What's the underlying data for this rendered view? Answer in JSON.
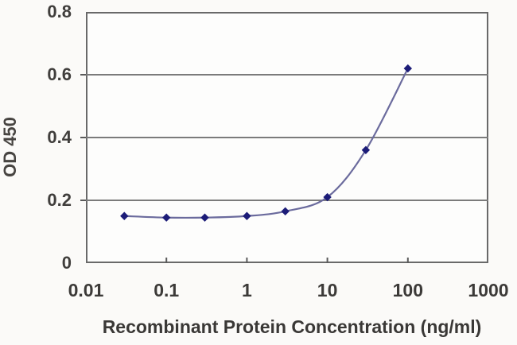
{
  "chart_data": {
    "type": "line",
    "title": "",
    "xlabel": "Recombinant Protein Concentration (ng/ml)",
    "ylabel": "OD 450",
    "x_scale": "log",
    "xlim": [
      0.01,
      1000
    ],
    "ylim": [
      0,
      0.8
    ],
    "x_ticks": [
      {
        "label": "0.01",
        "value": 0.01
      },
      {
        "label": "0.1",
        "value": 0.1
      },
      {
        "label": "1",
        "value": 1
      },
      {
        "label": "10",
        "value": 10
      },
      {
        "label": "100",
        "value": 100
      },
      {
        "label": "1000",
        "value": 1000
      }
    ],
    "y_ticks": [
      {
        "label": "0",
        "value": 0
      },
      {
        "label": "0.2",
        "value": 0.2
      },
      {
        "label": "0.4",
        "value": 0.4
      },
      {
        "label": "0.6",
        "value": 0.6
      },
      {
        "label": "0.8",
        "value": 0.8
      }
    ],
    "grid_y": [
      0.2,
      0.4,
      0.6
    ],
    "grid_on": true,
    "legend": "none",
    "series": [
      {
        "name": "OD 450",
        "marker": "diamond",
        "x": [
          0.03,
          0.1,
          0.3,
          1,
          3,
          10,
          30,
          100
        ],
        "y": [
          0.15,
          0.145,
          0.145,
          0.15,
          0.165,
          0.21,
          0.36,
          0.62
        ]
      }
    ],
    "colors": {
      "line": "#6b6b9d",
      "marker": "#1c1c78",
      "grid": "#7b7b7b",
      "frame": "#696969",
      "tick": "#5a5a5a",
      "text": "#3c3a38",
      "background": "#fbfaf8",
      "plot_background": "#fdfdfc"
    }
  }
}
